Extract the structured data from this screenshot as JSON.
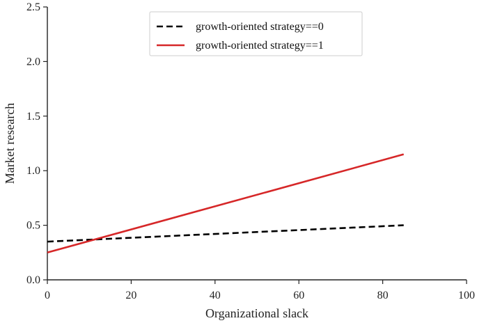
{
  "chart_data": {
    "type": "line",
    "title": "",
    "xlabel": "Organizational slack",
    "ylabel": "Market research",
    "xlim": [
      0,
      100
    ],
    "ylim": [
      0,
      2.5
    ],
    "xticks": [
      0,
      20,
      40,
      60,
      80,
      100
    ],
    "xtick_labels": [
      "0",
      "20",
      "40",
      "60",
      "80",
      "100"
    ],
    "yticks": [
      0,
      0.5,
      1,
      1.5,
      2,
      2.5
    ],
    "ytick_labels": [
      "0.0",
      "0.5",
      "1.0",
      "1.5",
      "2.0",
      "2.5"
    ],
    "grid": false,
    "legend_position": "top-right",
    "series": [
      {
        "name": "growth-oriented strategy==0",
        "color": "#000000",
        "dash": "dashed",
        "x": [
          0,
          85
        ],
        "y": [
          0.35,
          0.5
        ]
      },
      {
        "name": "growth-oriented strategy==1",
        "color": "#d62728",
        "dash": "solid",
        "x": [
          0,
          85
        ],
        "y": [
          0.25,
          1.15
        ]
      }
    ]
  }
}
